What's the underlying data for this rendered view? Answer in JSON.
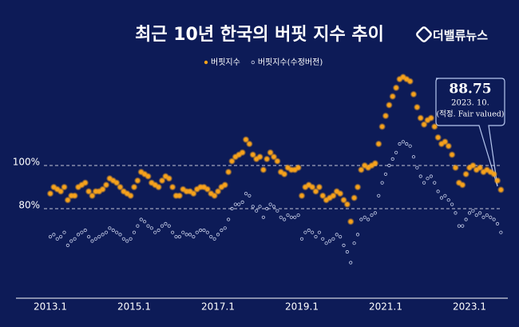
{
  "logo": "더밸류뉴스",
  "chart_data": {
    "type": "scatter",
    "title": "최근 10년 한국의 버핏 지수 추이",
    "categories": [
      "2013.1",
      null,
      null,
      null,
      null,
      null,
      null,
      null,
      null,
      null,
      null,
      null,
      null,
      null,
      null,
      null,
      null,
      null,
      null,
      null,
      null,
      null,
      null,
      null,
      "2015.1",
      null,
      null,
      null,
      null,
      null,
      null,
      null,
      null,
      null,
      null,
      null,
      null,
      null,
      null,
      null,
      null,
      null,
      null,
      null,
      null,
      null,
      null,
      null,
      "2017.1",
      null,
      null,
      null,
      null,
      null,
      null,
      null,
      null,
      null,
      null,
      null,
      null,
      null,
      null,
      null,
      null,
      null,
      null,
      null,
      null,
      null,
      null,
      null,
      "2019.1",
      null,
      null,
      null,
      null,
      null,
      null,
      null,
      null,
      null,
      null,
      null,
      null,
      null,
      null,
      null,
      null,
      null,
      null,
      null,
      null,
      null,
      null,
      null,
      "2021.1",
      null,
      null,
      null,
      null,
      null,
      null,
      null,
      null,
      null,
      null,
      null,
      null,
      null,
      null,
      null,
      null,
      null,
      null,
      null,
      null,
      null,
      null,
      null,
      "2023.1",
      null,
      null,
      null,
      null,
      null,
      null,
      null,
      null,
      null
    ],
    "series": [
      {
        "name": "버핏지수",
        "color": "#f7a21b",
        "values": [
          87,
          90,
          89,
          88,
          90,
          84,
          86,
          86,
          90,
          91,
          92,
          88,
          86,
          88,
          88,
          89,
          91,
          94,
          93,
          92,
          90,
          88,
          87,
          86,
          90,
          93,
          97,
          96,
          95,
          92,
          91,
          90,
          93,
          95,
          94,
          90,
          86,
          86,
          89,
          88,
          88,
          87,
          89,
          90,
          90,
          89,
          87,
          86,
          88,
          90,
          91,
          97,
          102,
          104,
          105,
          106,
          112,
          110,
          105,
          103,
          104,
          98,
          103,
          106,
          104,
          102,
          97,
          96,
          99,
          98,
          98,
          99,
          86,
          90,
          91,
          90,
          88,
          90,
          86,
          84,
          85,
          86,
          88,
          87,
          84,
          82,
          74,
          85,
          90,
          98,
          100,
          99,
          100,
          101,
          110,
          118,
          123,
          128,
          132,
          136,
          140,
          141,
          140,
          139,
          133,
          127,
          122,
          119,
          121,
          122,
          118,
          113,
          110,
          111,
          109,
          105,
          99,
          92,
          91,
          96,
          99,
          100,
          98,
          99,
          97,
          98,
          97,
          96,
          93,
          88.75
        ]
      },
      {
        "name": "버핏지수(수정버전)",
        "color": "#c9d1ea",
        "values": [
          67,
          68,
          66,
          67,
          69,
          63,
          65,
          66,
          68,
          69,
          70,
          67,
          65,
          66,
          67,
          68,
          69,
          71,
          70,
          69,
          68,
          66,
          65,
          66,
          69,
          72,
          75,
          74,
          72,
          71,
          69,
          70,
          72,
          73,
          72,
          69,
          67,
          67,
          69,
          68,
          68,
          67,
          69,
          70,
          70,
          69,
          67,
          66,
          68,
          70,
          71,
          75,
          80,
          82,
          82,
          83,
          87,
          86,
          81,
          79,
          81,
          76,
          80,
          82,
          81,
          79,
          76,
          75,
          77,
          76,
          76,
          77,
          66,
          69,
          70,
          69,
          67,
          69,
          66,
          64,
          65,
          66,
          68,
          67,
          63,
          60,
          55,
          64,
          68,
          75,
          76,
          75,
          77,
          78,
          86,
          92,
          96,
          100,
          103,
          106,
          110,
          111,
          110,
          109,
          104,
          99,
          95,
          92,
          94,
          95,
          92,
          88,
          85,
          86,
          84,
          82,
          78,
          72,
          72,
          75,
          78,
          79,
          77,
          78,
          76,
          77,
          76,
          75,
          73,
          69
        ]
      }
    ],
    "ylim": [
      40,
      150
    ],
    "yticks": [
      {
        "value": 100,
        "label": "100%"
      },
      {
        "value": 80,
        "label": "80%"
      }
    ],
    "grid": true,
    "annotation": [
      "88.75",
      "2023. 10.",
      "(적정. Fair valued)"
    ]
  }
}
